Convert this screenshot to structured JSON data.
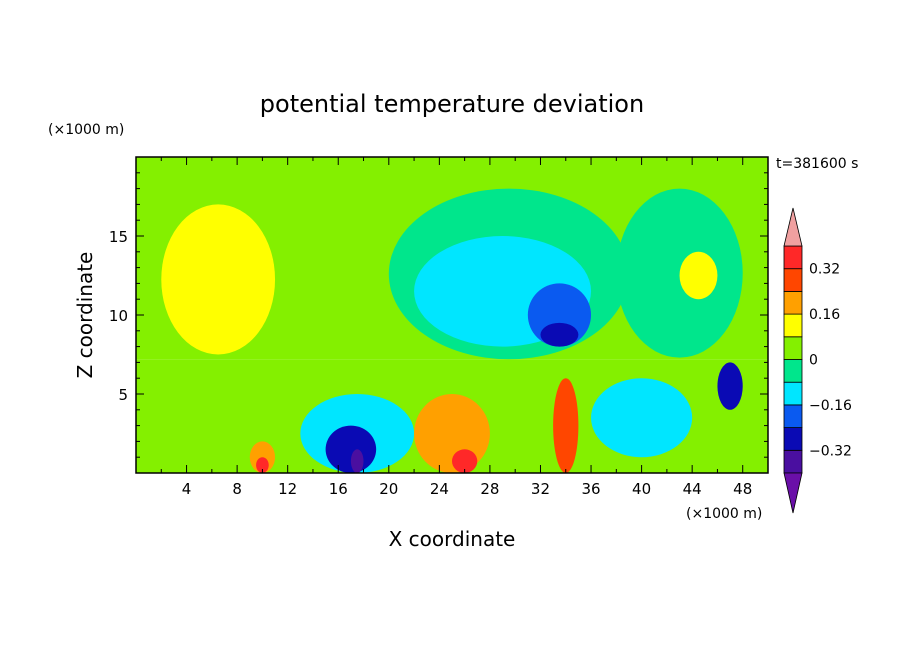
{
  "chart_data": {
    "type": "heatmap",
    "title": "potential temperature deviation",
    "xlabel": "X coordinate",
    "ylabel": "Z coordinate",
    "x_unit": "(×1000 m)",
    "y_unit": "(×1000 m)",
    "time_label": "t=381600 s",
    "xlim": [
      0,
      50
    ],
    "ylim": [
      0,
      20
    ],
    "x_ticks": [
      4,
      8,
      12,
      16,
      20,
      24,
      28,
      32,
      36,
      40,
      44,
      48
    ],
    "y_ticks": [
      5,
      10,
      15
    ],
    "colorbar": {
      "levels": [
        -0.4,
        -0.32,
        -0.24,
        -0.16,
        -0.08,
        0,
        0.08,
        0.16,
        0.24,
        0.32,
        0.4
      ],
      "labels": [
        "−0.32",
        "−0.16",
        "0",
        "0.16",
        "0.32"
      ],
      "label_values": [
        -0.32,
        -0.16,
        0,
        0.16,
        0.32
      ],
      "colors": [
        "#6a0fa8",
        "#4a0fa0",
        "#0a0ab4",
        "#0a5af0",
        "#00e6ff",
        "#00e68c",
        "#84f000",
        "#ffff00",
        "#ffa000",
        "#ff4600",
        "#ff2828",
        "#f0a0a0"
      ]
    },
    "upper_layer": {
      "z_range": [
        7.2,
        20
      ],
      "regions": [
        {
          "value": 0.04,
          "x": [
            0,
            50
          ]
        },
        {
          "value": 0.12,
          "x": [
            2,
            11
          ],
          "z": [
            7.5,
            17
          ]
        },
        {
          "value": -0.04,
          "x": [
            20,
            39
          ],
          "z": [
            7.2,
            18
          ]
        },
        {
          "value": -0.12,
          "x": [
            22,
            36
          ],
          "z": [
            8,
            15
          ]
        },
        {
          "value": -0.2,
          "x": [
            31,
            36
          ],
          "z": [
            8,
            12
          ]
        },
        {
          "value": -0.28,
          "x": [
            32,
            35
          ],
          "z": [
            8,
            9.5
          ]
        },
        {
          "value": -0.04,
          "x": [
            38,
            48
          ],
          "z": [
            7.3,
            18
          ]
        },
        {
          "value": 0.12,
          "x": [
            43,
            46
          ],
          "z": [
            11,
            14
          ]
        }
      ]
    },
    "lower_layer": {
      "z_range": [
        0,
        7.2
      ],
      "regions": [
        {
          "value": 0.04,
          "x": [
            0,
            50
          ]
        },
        {
          "value": -0.12,
          "x": [
            13,
            22
          ],
          "z": [
            0,
            5
          ]
        },
        {
          "value": -0.28,
          "x": [
            15,
            19
          ],
          "z": [
            0,
            3
          ]
        },
        {
          "value": -0.36,
          "x": [
            17,
            18
          ],
          "z": [
            0,
            1.5
          ]
        },
        {
          "value": 0.2,
          "x": [
            9,
            11
          ],
          "z": [
            0,
            2
          ]
        },
        {
          "value": 0.36,
          "x": [
            9.5,
            10.5
          ],
          "z": [
            0,
            1
          ]
        },
        {
          "value": 0.2,
          "x": [
            22,
            28
          ],
          "z": [
            0,
            5
          ]
        },
        {
          "value": 0.36,
          "x": [
            25,
            27
          ],
          "z": [
            0,
            1.5
          ]
        },
        {
          "value": 0.28,
          "x": [
            33,
            35
          ],
          "z": [
            0,
            6
          ]
        },
        {
          "value": -0.12,
          "x": [
            36,
            44
          ],
          "z": [
            1,
            6
          ]
        },
        {
          "value": -0.28,
          "x": [
            46,
            48
          ],
          "z": [
            4,
            7
          ]
        }
      ]
    }
  }
}
